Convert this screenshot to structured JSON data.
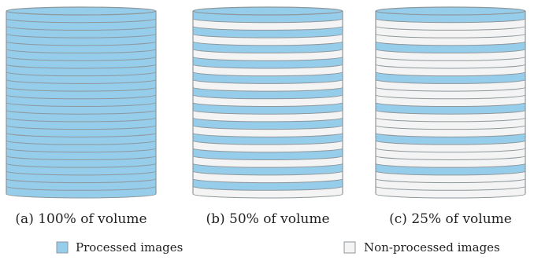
{
  "colors": {
    "processed": "#95cdeb",
    "non_processed": "#f4f4f4",
    "edge": "#8f979b"
  },
  "panels": [
    {
      "caption": "(a) 100% of volume",
      "processed_fraction": 1.0
    },
    {
      "caption": "(b) 50% of volume",
      "processed_fraction": 0.5
    },
    {
      "caption": "(c) 25% of volume",
      "processed_fraction": 0.25
    }
  ],
  "legend": {
    "processed_label": "Processed images",
    "non_processed_label": "Non-processed images"
  }
}
